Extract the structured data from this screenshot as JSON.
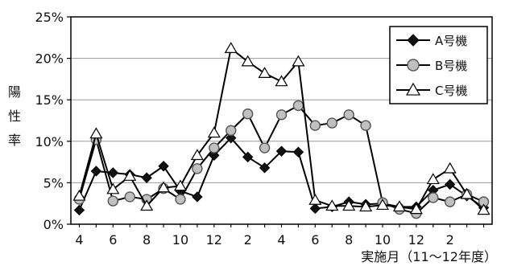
{
  "chart_data": {
    "type": "line",
    "title": "",
    "ylabel": "陽性率",
    "xlabel": "実施月（11〜12年度）",
    "x_tick_labels": [
      "4",
      "6",
      "8",
      "10",
      "12",
      "2",
      "4",
      "6",
      "8",
      "10",
      "12",
      "2"
    ],
    "y_ticks": [
      "0%",
      "5%",
      "10%",
      "15%",
      "20%",
      "25%"
    ],
    "ylim": [
      0,
      25
    ],
    "grid": true,
    "legend_position": "top-right",
    "x": [
      1,
      2,
      3,
      4,
      5,
      6,
      7,
      8,
      9,
      10,
      11,
      12,
      13,
      14,
      15,
      16,
      17,
      18,
      19,
      20,
      21,
      22,
      23,
      24,
      25
    ],
    "series": [
      {
        "name": "A号機",
        "marker": "diamond",
        "fill": "#111111",
        "values": [
          1.7,
          6.4,
          6.2,
          6.0,
          5.6,
          7.0,
          4.0,
          3.3,
          8.3,
          10.4,
          8.1,
          6.8,
          8.8,
          8.7,
          1.9,
          2.1,
          2.7,
          2.4,
          2.5,
          2.1,
          2.1,
          4.1,
          4.8,
          3.4,
          2.0
        ]
      },
      {
        "name": "B号機",
        "marker": "circle",
        "fill": "#c0c0c0",
        "values": [
          3.0,
          10.2,
          2.8,
          3.3,
          3.0,
          4.3,
          3.0,
          6.7,
          9.2,
          11.3,
          13.3,
          9.2,
          13.2,
          14.3,
          11.9,
          12.2,
          13.2,
          11.9,
          2.6,
          1.8,
          1.3,
          3.2,
          2.7,
          3.6,
          2.7
        ]
      },
      {
        "name": "C号機",
        "marker": "triangle",
        "fill": "#ffffff",
        "values": [
          3.4,
          10.9,
          4.2,
          5.8,
          2.2,
          4.4,
          4.6,
          8.3,
          11.0,
          21.2,
          19.6,
          18.2,
          17.2,
          19.6,
          2.9,
          2.2,
          2.2,
          2.1,
          2.3,
          2.1,
          1.8,
          5.4,
          6.7,
          3.6,
          1.7
        ]
      }
    ]
  }
}
